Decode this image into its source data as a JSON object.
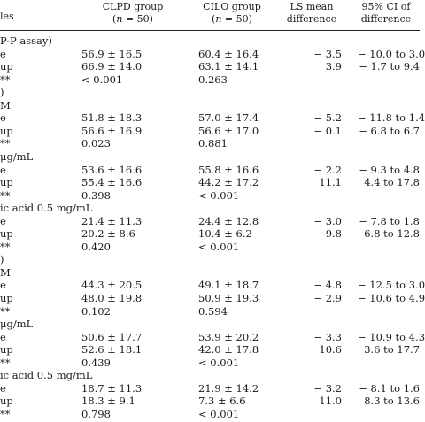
{
  "header": {
    "col0": "les",
    "col1_line1": "CLPD group",
    "col1_line2_n": "n",
    "col1_line2_rest": " = 50)",
    "col1_open": "(",
    "col2_line1": "CILO group",
    "col2_open": "(",
    "col2_line2_n": "n",
    "col2_line2_rest": " = 50)",
    "col3_line1": "LS mean",
    "col3_line2": "difference",
    "col4_line1": "95% CI of",
    "col4_line2": "difference"
  },
  "rows": [
    {
      "c0": "P-P assay)",
      "c1": "",
      "c2": "",
      "c3": "",
      "c4": ""
    },
    {
      "c0": "e",
      "c1": "56.9 ± 16.5",
      "c2": "60.4 ± 16.4",
      "c3": "− 3.5",
      "c4": "− 10.0 to 3.0"
    },
    {
      "c0": "up",
      "c1": "66.9 ± 14.0",
      "c2": "63.1 ± 14.1",
      "c3": "3.9",
      "c4": "− 1.7 to 9.4"
    },
    {
      "c0": "**",
      "c1": "< 0.001",
      "c2": "0.263",
      "c3": "",
      "c4": ""
    },
    {
      "c0": ")",
      "c1": "",
      "c2": "",
      "c3": "",
      "c4": ""
    },
    {
      "c0": "M",
      "c1": "",
      "c2": "",
      "c3": "",
      "c4": ""
    },
    {
      "c0": "e",
      "c1": "51.8 ± 18.3",
      "c2": "57.0 ± 17.4",
      "c3": "− 5.2",
      "c4": "− 11.8 to 1.4"
    },
    {
      "c0": "up",
      "c1": "56.6 ± 16.9",
      "c2": "56.6 ± 17.0",
      "c3": "− 0.1",
      "c4": "− 6.8 to 6.7"
    },
    {
      "c0": "**",
      "c1": "0.023",
      "c2": "0.881",
      "c3": "",
      "c4": ""
    },
    {
      "c0": " μg/mL",
      "c1": "",
      "c2": "",
      "c3": "",
      "c4": ""
    },
    {
      "c0": "e",
      "c1": "53.6 ± 16.6",
      "c2": "55.8 ± 16.6",
      "c3": "− 2.2",
      "c4": "− 9.3 to 4.8"
    },
    {
      "c0": "up",
      "c1": "55.4 ± 16.6",
      "c2": "44.2 ± 17.2",
      "c3": "11.1",
      "c4": "4.4 to 17.8"
    },
    {
      "c0": "**",
      "c1": "0.398",
      "c2": "< 0.001",
      "c3": "",
      "c4": ""
    },
    {
      "c0": "ic acid 0.5 mg/mL",
      "c1": "",
      "c2": "",
      "c3": "",
      "c4": ""
    },
    {
      "c0": "e",
      "c1": "21.4 ± 11.3",
      "c2": "24.4 ± 12.8",
      "c3": "− 3.0",
      "c4": "− 7.8 to 1.8"
    },
    {
      "c0": "up",
      "c1": "20.2 ± 8.6",
      "c2": "10.4 ± 6.2",
      "c3": "9.8",
      "c4": "6.8 to 12.8"
    },
    {
      "c0": "**",
      "c1": "0.420",
      "c2": "< 0.001",
      "c3": "",
      "c4": ""
    },
    {
      "c0": ")",
      "c1": "",
      "c2": "",
      "c3": "",
      "c4": ""
    },
    {
      "c0": "M",
      "c1": "",
      "c2": "",
      "c3": "",
      "c4": ""
    },
    {
      "c0": "e",
      "c1": "44.3 ± 20.5",
      "c2": "49.1 ± 18.7",
      "c3": "− 4.8",
      "c4": "− 12.5 to 3.0"
    },
    {
      "c0": "up",
      "c1": "48.0 ± 19.8",
      "c2": "50.9 ± 19.3",
      "c3": "− 2.9",
      "c4": "− 10.6 to 4.9"
    },
    {
      "c0": "**",
      "c1": "0.102",
      "c2": "0.594",
      "c3": "",
      "c4": ""
    },
    {
      "c0": " μg/mL",
      "c1": "",
      "c2": "",
      "c3": "",
      "c4": ""
    },
    {
      "c0": "e",
      "c1": "50.6 ± 17.7",
      "c2": "53.9 ± 20.2",
      "c3": "− 3.3",
      "c4": "− 10.9 to 4.3"
    },
    {
      "c0": "up",
      "c1": "52.6 ± 18.1",
      "c2": "42.0 ± 17.8",
      "c3": "10.6",
      "c4": "3.6 to 17.7"
    },
    {
      "c0": "**",
      "c1": "0.439",
      "c2": "< 0.001",
      "c3": "",
      "c4": ""
    },
    {
      "c0": "ic acid 0.5 mg/mL",
      "c1": "",
      "c2": "",
      "c3": "",
      "c4": ""
    },
    {
      "c0": "e",
      "c1": "18.7 ± 11.3",
      "c2": "21.9 ± 14.2",
      "c3": "− 3.2",
      "c4": "− 8.1 to 1.6"
    },
    {
      "c0": "up",
      "c1": "18.3 ± 9.1",
      "c2": "7.3 ± 6.6",
      "c3": "11.0",
      "c4": "8.3 to 13.6"
    },
    {
      "c0": "**",
      "c1": "0.798",
      "c2": "< 0.001",
      "c3": "",
      "c4": ""
    }
  ]
}
